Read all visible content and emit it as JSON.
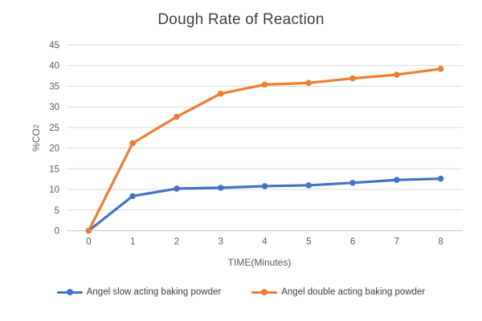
{
  "chart_data": {
    "type": "line",
    "title": "Dough Rate of Reaction",
    "xlabel": "TIME(Minutes)",
    "ylabel": "%CO2",
    "ylabel_main": "%CO",
    "ylabel_sub": "2",
    "categories": [
      "0",
      "1",
      "2",
      "3",
      "4",
      "5",
      "6",
      "7",
      "8"
    ],
    "y_ticks": [
      0,
      5,
      10,
      15,
      20,
      25,
      30,
      35,
      40,
      45
    ],
    "ylim": [
      0,
      45
    ],
    "grid": true,
    "legend_position": "bottom",
    "series": [
      {
        "name": "Angel slow acting baking powder",
        "color": "#4472C4",
        "values": [
          0,
          8.4,
          10.2,
          10.4,
          10.8,
          11.0,
          11.6,
          12.3,
          12.6
        ]
      },
      {
        "name": "Angel double acting baking powder",
        "color": "#ED7D31",
        "values": [
          0,
          21.2,
          27.6,
          33.2,
          35.4,
          35.8,
          36.9,
          37.8,
          39.2
        ]
      }
    ],
    "colors": {
      "gridline": "#D9D9D9",
      "axis_line": "#C9C9C9",
      "axis_text": "#595959",
      "title_text": "#404040"
    }
  }
}
